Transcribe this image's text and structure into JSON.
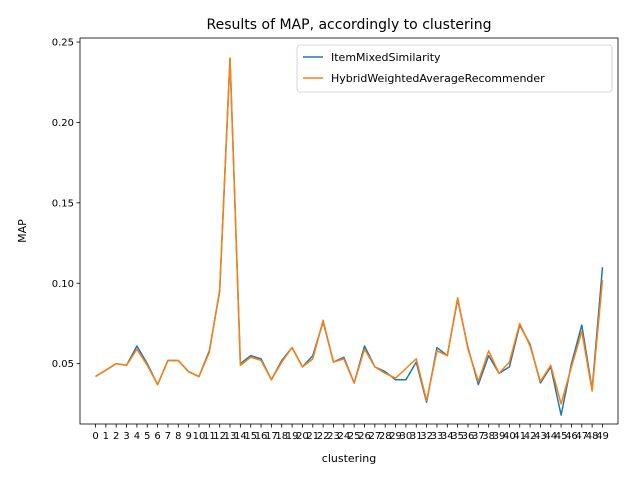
{
  "chart_data": {
    "type": "line",
    "title": "Results of MAP, accordingly to clustering",
    "xlabel": "clustering",
    "ylabel": "MAP",
    "x": [
      0,
      1,
      2,
      3,
      4,
      5,
      6,
      7,
      8,
      9,
      10,
      11,
      12,
      13,
      14,
      15,
      16,
      17,
      18,
      19,
      20,
      21,
      22,
      23,
      24,
      25,
      26,
      27,
      28,
      29,
      30,
      31,
      32,
      33,
      34,
      35,
      36,
      37,
      38,
      39,
      40,
      41,
      42,
      43,
      44,
      45,
      46,
      47,
      48,
      49
    ],
    "xlim": [
      -1.5,
      50.5
    ],
    "ylim": [
      0.0125,
      0.2525
    ],
    "yticks": [
      0.05,
      0.1,
      0.15,
      0.2,
      0.25
    ],
    "ytick_labels": [
      "0.05",
      "0.10",
      "0.15",
      "0.20",
      "0.25"
    ],
    "grid": false,
    "legend_position": "upper right",
    "series": [
      {
        "name": "ItemMixedSimilarity",
        "color": "#1f77b4",
        "values": [
          0.042,
          0.046,
          0.05,
          0.049,
          0.061,
          0.05,
          0.037,
          0.052,
          0.052,
          0.045,
          0.042,
          0.058,
          0.095,
          0.24,
          0.05,
          0.055,
          0.053,
          0.04,
          0.052,
          0.06,
          0.048,
          0.055,
          0.076,
          0.051,
          0.054,
          0.038,
          0.061,
          0.048,
          0.045,
          0.04,
          0.04,
          0.051,
          0.026,
          0.06,
          0.055,
          0.09,
          0.06,
          0.037,
          0.055,
          0.044,
          0.048,
          0.074,
          0.062,
          0.038,
          0.048,
          0.018,
          0.05,
          0.074,
          0.034,
          0.11
        ]
      },
      {
        "name": "HybridWeightedAverageRecommender",
        "color": "#ff7f0e",
        "values": [
          0.042,
          0.046,
          0.05,
          0.049,
          0.059,
          0.049,
          0.037,
          0.052,
          0.052,
          0.045,
          0.042,
          0.057,
          0.096,
          0.24,
          0.049,
          0.054,
          0.052,
          0.04,
          0.051,
          0.06,
          0.048,
          0.053,
          0.077,
          0.051,
          0.053,
          0.038,
          0.059,
          0.048,
          0.044,
          0.041,
          0.047,
          0.053,
          0.027,
          0.058,
          0.055,
          0.091,
          0.059,
          0.039,
          0.058,
          0.044,
          0.051,
          0.075,
          0.061,
          0.039,
          0.049,
          0.025,
          0.048,
          0.07,
          0.033,
          0.102
        ]
      }
    ]
  }
}
